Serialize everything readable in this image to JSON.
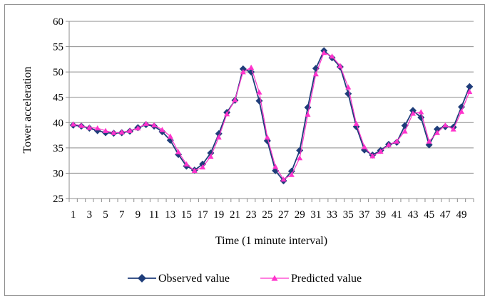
{
  "chart_data": {
    "type": "line",
    "xlabel": "Time (1 minute interval)",
    "ylabel": "Tower acceleration",
    "ylim": [
      25,
      60
    ],
    "yticks": [
      25,
      30,
      35,
      40,
      45,
      50,
      55,
      60
    ],
    "x": [
      1,
      2,
      3,
      4,
      5,
      6,
      7,
      8,
      9,
      10,
      11,
      12,
      13,
      14,
      15,
      16,
      17,
      18,
      19,
      20,
      21,
      22,
      23,
      24,
      25,
      26,
      27,
      28,
      29,
      30,
      31,
      32,
      33,
      34,
      35,
      36,
      37,
      38,
      39,
      40,
      41,
      42,
      43,
      44,
      45,
      46,
      47,
      48,
      49,
      50
    ],
    "xtick_labels": [
      "1",
      "3",
      "5",
      "7",
      "9",
      "11",
      "13",
      "15",
      "17",
      "19",
      "21",
      "23",
      "25",
      "27",
      "29",
      "31",
      "33",
      "35",
      "37",
      "39",
      "41",
      "43",
      "45",
      "47",
      "49"
    ],
    "grid": "horizontal",
    "legend_position": "bottom",
    "series": [
      {
        "name": "Observed value",
        "color": "#1f3d7a",
        "marker": "diamond",
        "values": [
          39.5,
          39.3,
          38.9,
          38.4,
          38.0,
          37.9,
          38.0,
          38.3,
          39.0,
          39.6,
          39.3,
          38.2,
          36.5,
          33.7,
          31.4,
          30.6,
          31.8,
          34.0,
          37.8,
          42.0,
          44.4,
          50.6,
          50.0,
          44.3,
          36.4,
          30.5,
          28.5,
          30.4,
          34.5,
          43.0,
          50.7,
          54.2,
          52.8,
          51.0,
          45.7,
          39.2,
          34.6,
          33.6,
          34.5,
          35.7,
          36.1,
          39.4,
          42.4,
          41.0,
          35.6,
          38.7,
          39.2,
          39.1,
          43.1,
          47.1
        ]
      },
      {
        "name": "Predicted value",
        "color": "#ff33cc",
        "marker": "triangle",
        "values": [
          39.7,
          39.4,
          39.0,
          38.9,
          38.4,
          38.0,
          38.1,
          38.4,
          38.9,
          39.8,
          39.5,
          38.6,
          37.3,
          34.2,
          31.8,
          30.5,
          31.2,
          33.3,
          37.1,
          41.7,
          44.5,
          50.0,
          50.9,
          46.0,
          37.1,
          31.3,
          28.8,
          29.7,
          33.0,
          41.6,
          49.6,
          53.8,
          53.1,
          51.2,
          47.0,
          39.8,
          35.2,
          33.4,
          34.3,
          35.6,
          36.3,
          38.3,
          41.8,
          42.1,
          36.3,
          38.0,
          39.5,
          38.7,
          42.2,
          46.1
        ]
      }
    ]
  }
}
